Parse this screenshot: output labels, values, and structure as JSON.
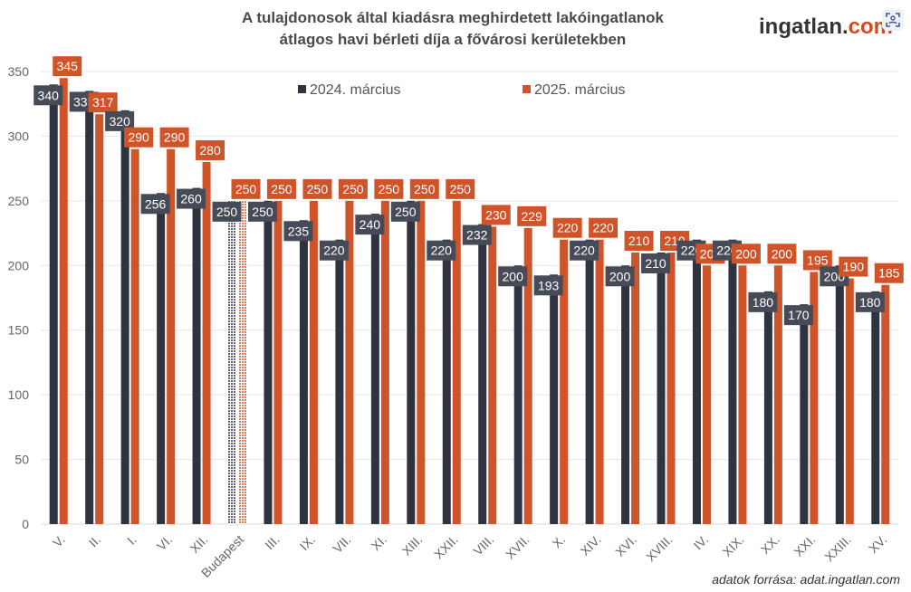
{
  "header": {
    "title_line1": "A tulajdonosok által kiadásra meghirdetett lakóingatlanok",
    "title_line2": "átlagos havi bérleti díja a fővárosi kerületekben",
    "brand_main": "ingatlan.",
    "brand_accent": "com"
  },
  "footer": {
    "source": "adatok forrása: adat.ingatlan.com"
  },
  "colors": {
    "series_2024": "#2f3340",
    "series_2025": "#d0542a",
    "label_2024_bg": "#474b57",
    "grid": "#e6e6e6",
    "brand_accent": "#d24a1f"
  },
  "chart_data": {
    "type": "bar",
    "title": "A tulajdonosok által kiadásra meghirdetett lakóingatlanok átlagos havi bérleti díja a fővárosi kerületekben",
    "xlabel": "",
    "ylabel": "",
    "ylim": [
      0,
      350
    ],
    "yticks": [
      0,
      50,
      100,
      150,
      200,
      250,
      300,
      350
    ],
    "grid": true,
    "legend_position": "top-center",
    "categories": [
      "V.",
      "II.",
      "I.",
      "VI.",
      "XII.",
      "Budapest",
      "III.",
      "IX.",
      "VII.",
      "XI.",
      "XIII.",
      "XXII.",
      "VIII.",
      "XVII.",
      "X.",
      "XIV.",
      "XVI.",
      "XVIII.",
      "IV.",
      "XIX.",
      "XX.",
      "XXI.",
      "XXIII.",
      "XV."
    ],
    "highlight_category": "Budapest",
    "series": [
      {
        "name": "2024. március",
        "values": [
          340,
          335,
          320,
          256,
          260,
          250,
          250,
          235,
          220,
          240,
          250,
          220,
          232,
          200,
          193,
          220,
          200,
          210,
          220,
          220,
          180,
          170,
          200,
          180
        ]
      },
      {
        "name": "2025. március",
        "values": [
          345,
          317,
          290,
          290,
          280,
          250,
          250,
          250,
          250,
          250,
          250,
          250,
          230,
          229,
          220,
          220,
          210,
          210,
          200,
          200,
          200,
          195,
          190,
          185
        ]
      }
    ]
  }
}
